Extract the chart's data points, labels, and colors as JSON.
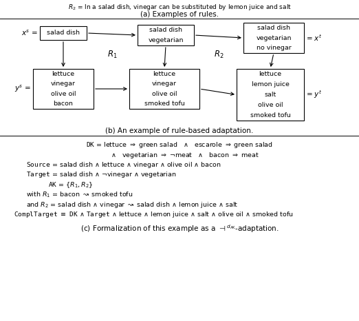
{
  "bg_color": "#ffffff",
  "text_color": "#000000",
  "fig_w": 5.22,
  "fig_h": 4.66,
  "dpi": 100,
  "top_text": "$R_2$ = In a salad dish, vinegar can be substituted by lemon juice and salt",
  "subtitle_a": "(a) Examples of rules.",
  "subtitle_b": "(b) An example of rule-based adaptation.",
  "subtitle_c": "(c) Formalization of this example as a $\\dashv^{d_{\\mathrm{AK}}}$-adaptation.",
  "box1_lines": [
    "salad dish"
  ],
  "box2_lines": [
    "salad dish",
    "vegetarian"
  ],
  "box3_lines": [
    "salad dish",
    "vegetarian",
    "no vinegar"
  ],
  "box4_lines": [
    "lettuce",
    "vinegar",
    "olive oil",
    "bacon"
  ],
  "box5_lines": [
    "lettuce",
    "vinegar",
    "olive oil",
    "smoked tofu"
  ],
  "box6_lines": [
    "lettuce",
    "lemon juice",
    "salt",
    "olive oil",
    "smoked tofu"
  ],
  "xs_label": "$x^s$ =",
  "ys_label": "$y^s$ =",
  "xt_label": "= $x^t$",
  "yt_label": "= $y^t$",
  "R1_label": "$R_1$",
  "R2_label": "$R_2$",
  "sec_c_lines": [
    "$\\mathtt{DK}$ = lettuce $\\Rightarrow$ green salad   $\\wedge$   escarole $\\Rightarrow$ green salad",
    "     $\\wedge$   vegetarian $\\Rightarrow$ $\\neg$meat   $\\wedge$   bacon $\\Rightarrow$ meat",
    "$\\mathtt{Source}$ = salad dish $\\wedge$ lettuce $\\wedge$ vinegar $\\wedge$ olive oil $\\wedge$ bacon",
    "$\\mathtt{Target}$ = salad dish $\\wedge$ $\\neg$vinegar $\\wedge$ vegetarian",
    "     $\\mathtt{AK}$ = $\\{R_1, R_2\\}$",
    "with $R_1$ = bacon $\\rightsquigarrow$ smoked tofu",
    "and $R_2$ = salad dish $\\wedge$ vinegar $\\rightsquigarrow$ salad dish $\\wedge$ lemon juice $\\wedge$ salt",
    "$\\mathtt{ComplTarget}$ $\\equiv$ $\\mathtt{DK}$ $\\wedge$ $\\mathtt{Target}$ $\\wedge$ lettuce $\\wedge$ lemon juice $\\wedge$ salt $\\wedge$ olive oil $\\wedge$ smoked tofu"
  ]
}
